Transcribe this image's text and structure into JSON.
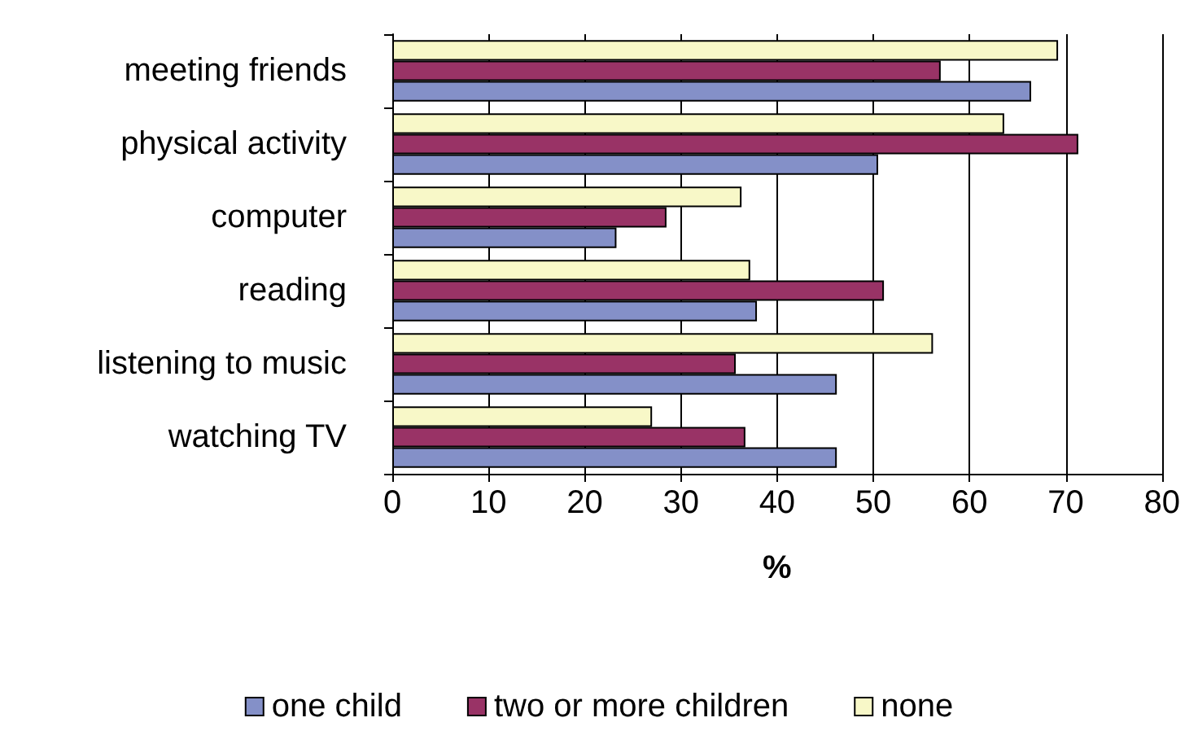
{
  "chart_data": {
    "type": "bar",
    "orientation": "horizontal",
    "xlabel": "%",
    "categories": [
      "meeting friends",
      "physical activity",
      "computer",
      "reading",
      "listening to music",
      "watching TV"
    ],
    "series": [
      {
        "name": "one child",
        "color": "#8490c8",
        "values": [
          66.4,
          50.5,
          23.3,
          37.9,
          46.2,
          46.2
        ]
      },
      {
        "name": "two or more children",
        "color": "#993366",
        "values": [
          57.0,
          71.3,
          28.5,
          51.1,
          35.7,
          36.7
        ]
      },
      {
        "name": "none",
        "color": "#f8f8c8",
        "values": [
          69.2,
          63.6,
          36.3,
          37.2,
          56.2,
          27.0
        ]
      }
    ],
    "xlim": [
      0,
      80
    ],
    "xticks": [
      0,
      10,
      20,
      30,
      40,
      50,
      60,
      70,
      80
    ],
    "grid": "x",
    "legend": "bottom"
  }
}
